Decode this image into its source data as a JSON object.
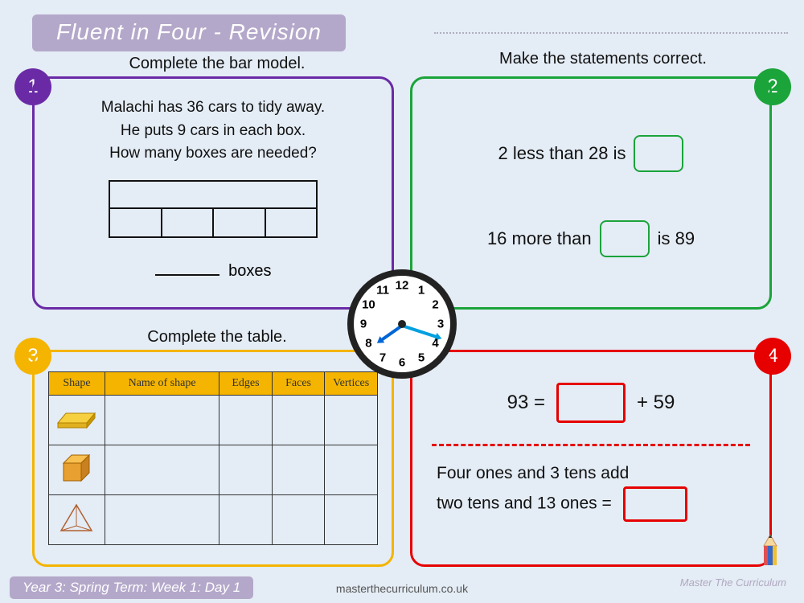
{
  "title": "Fluent in Four - Revision",
  "instructions": {
    "p1": "Complete the bar model.",
    "p2": "Make the statements correct.",
    "p3": "Complete the table."
  },
  "badges": {
    "b1": "1",
    "b2": "2",
    "b3": "3",
    "b4": "4"
  },
  "panel1": {
    "line1": "Malachi has 36 cars to tidy away.",
    "line2": "He puts 9 cars in each box.",
    "line3": "How many boxes are needed?",
    "bar_parts": 4,
    "answer_unit": "boxes"
  },
  "panel2": {
    "s1_pre": "2 less than 28 is",
    "s2_pre": "16 more than",
    "s2_post": "is 89"
  },
  "panel3": {
    "columns": [
      "Shape",
      "Name of shape",
      "Edges",
      "Faces",
      "Vertices"
    ],
    "rows": 3
  },
  "panel4": {
    "eq_left": "93 =",
    "eq_right": "+ 59",
    "word_l1": "Four ones and 3 tens add",
    "word_l2": "two tens and 13 ones ="
  },
  "clock": {
    "hour_angle": 145,
    "minute_angle": 18
  },
  "footer": {
    "term": "Year 3: Spring Term: Week 1: Day 1",
    "url": "masterthecurriculum.co.uk",
    "brand": "Master The Curriculum"
  },
  "colors": {
    "bg": "#e4ecf5",
    "purple": "#6a2aa6",
    "green": "#1aa43a",
    "yellow": "#f4b400",
    "red": "#e60000",
    "banner": "#b4a8ca"
  }
}
